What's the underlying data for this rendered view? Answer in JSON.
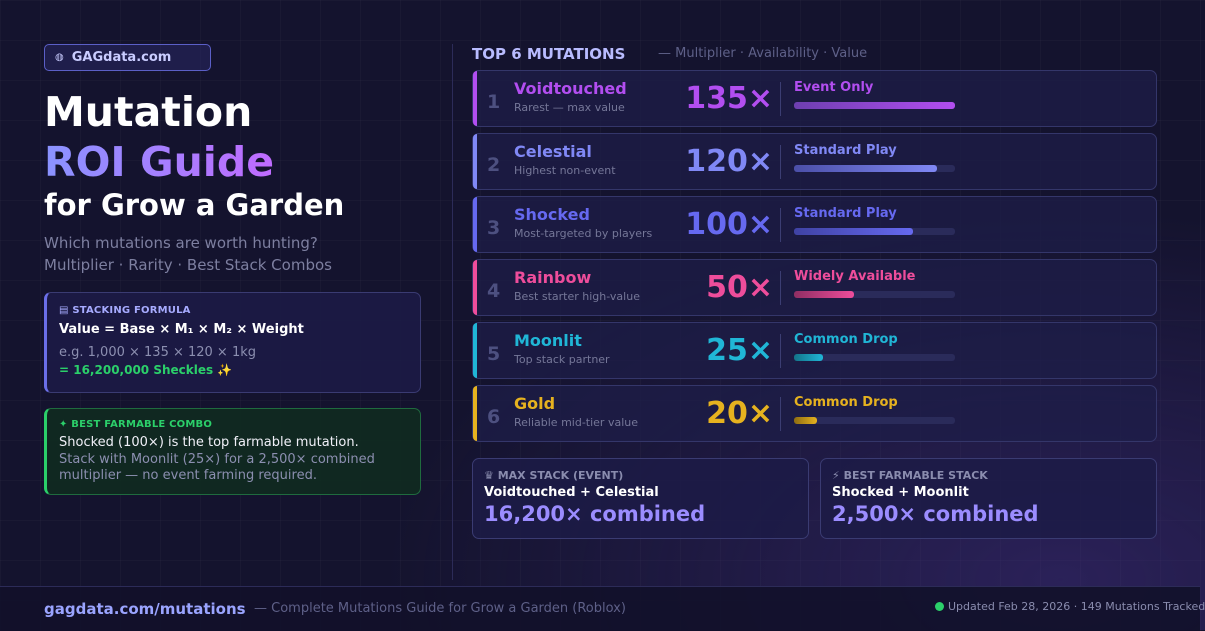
{
  "brand": {
    "label": "GAGdata.com",
    "icon": "globe-icon"
  },
  "hero": {
    "line1": "Mutation",
    "line2": "ROI Guide",
    "line3": "for Grow a Garden",
    "sub1": "Which mutations are worth hunting?",
    "sub2": "Multiplier · Rarity · Best Stack Combos"
  },
  "formula": {
    "title": "STACKING FORMULA",
    "line": "Value = Base × M₁ × M₂ × Weight",
    "example": "e.g. 1,000 × 135 × 120 × 1kg",
    "result": "= 16,200,000 Sheckles ✨"
  },
  "combo": {
    "title": "BEST FARMABLE COMBO",
    "line1": "Shocked (100×) is the top farmable mutation.",
    "line2": "Stack with Moonlit (25×) for a 2,500× combined",
    "line3": "multiplier — no event farming required."
  },
  "top": {
    "title": "TOP 6 MUTATIONS",
    "subtitle": "— Multiplier · Availability · Value"
  },
  "mutations": [
    {
      "rank": "1",
      "name": "Voidtouched",
      "desc": "Rarest — max value",
      "mult": "135×",
      "avail": "Event Only",
      "level": 1.0,
      "color": "#b24ef0",
      "color2": "#6d3fb0"
    },
    {
      "rank": "2",
      "name": "Celestial",
      "desc": "Highest non-event",
      "mult": "120×",
      "avail": "Standard Play",
      "level": 0.89,
      "color": "#8088f5",
      "color2": "#4b4fa8"
    },
    {
      "rank": "3",
      "name": "Shocked",
      "desc": "Most-targeted by players",
      "mult": "100×",
      "avail": "Standard Play",
      "level": 0.74,
      "color": "#6669f0",
      "color2": "#3f42a3"
    },
    {
      "rank": "4",
      "name": "Rainbow",
      "desc": "Best starter high-value",
      "mult": "50×",
      "avail": "Widely Available",
      "level": 0.37,
      "color": "#ee4d9b",
      "color2": "#8f2e63"
    },
    {
      "rank": "5",
      "name": "Moonlit",
      "desc": "Top stack partner",
      "mult": "25×",
      "avail": "Common Drop",
      "level": 0.18,
      "color": "#20b6d6",
      "color2": "#137389"
    },
    {
      "rank": "6",
      "name": "Gold",
      "desc": "Reliable mid-tier value",
      "mult": "20×",
      "avail": "Common Drop",
      "level": 0.14,
      "color": "#e6b21f",
      "color2": "#8f6d12"
    }
  ],
  "stacks": {
    "max": {
      "title": "MAX STACK (EVENT)",
      "combo": "Voidtouched + Celestial",
      "value": "16,200× combined"
    },
    "farm": {
      "title": "BEST FARMABLE STACK",
      "combo": "Shocked + Moonlit",
      "value": "2,500× combined"
    }
  },
  "footer": {
    "url": "gagdata.com/mutations",
    "desc": "— Complete Mutations Guide for Grow a Garden (Roblox)",
    "updated": "Updated Feb 28, 2026 · 149 Mutations Tracked"
  }
}
